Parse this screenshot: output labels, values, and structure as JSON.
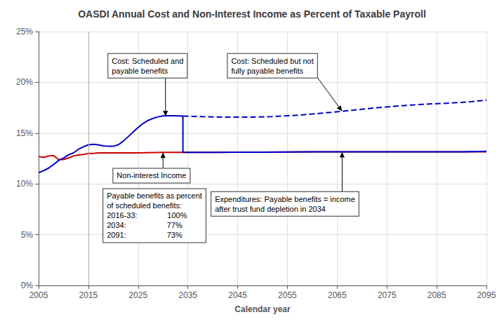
{
  "chart_data": {
    "type": "line",
    "title": "OASDI Annual Cost and Non-Interest Income as Percent of Taxable Payroll",
    "xlabel": "Calendar year",
    "xlim": [
      2005,
      2095
    ],
    "xticks": [
      2005,
      2015,
      2025,
      2035,
      2045,
      2055,
      2065,
      2075,
      2085,
      2095
    ],
    "ylim": [
      0,
      25
    ],
    "yticks": [
      {
        "value": 0,
        "label": "0%"
      },
      {
        "value": 5,
        "label": "5%"
      },
      {
        "value": 10,
        "label": "10%"
      },
      {
        "value": 15,
        "label": "15%"
      },
      {
        "value": 20,
        "label": "20%"
      },
      {
        "value": 25,
        "label": "25%"
      }
    ],
    "grid": true,
    "series": [
      {
        "color": "#CC0000",
        "x": [
          2005,
          2006,
          2007,
          2008,
          2009,
          2010,
          2011,
          2012,
          2013,
          2014,
          2015,
          2016,
          2017,
          2018,
          2019,
          2020,
          2025,
          2030,
          2034,
          2035,
          2040,
          2045,
          2050,
          2055,
          2060,
          2065,
          2070,
          2075,
          2080,
          2085,
          2090,
          2095
        ],
        "values": [
          12.7,
          12.6,
          12.75,
          12.8,
          12.4,
          12.4,
          12.55,
          12.75,
          12.85,
          12.9,
          13.0,
          13.0,
          13.05,
          13.05,
          13.05,
          13.05,
          13.05,
          13.1,
          13.1,
          13.1,
          13.1,
          13.12,
          13.13,
          13.14,
          13.15,
          13.15,
          13.15,
          13.15,
          13.15,
          13.15,
          13.15,
          13.15
        ]
      },
      {
        "color": "#0000CC",
        "x": [
          2005,
          2006,
          2007,
          2008,
          2009,
          2010,
          2011,
          2012,
          2013,
          2014,
          2015,
          2016,
          2017,
          2018,
          2019,
          2020,
          2021,
          2022,
          2023,
          2024,
          2025,
          2026,
          2027,
          2028,
          2029,
          2030,
          2031,
          2032,
          2033,
          2034
        ],
        "values": [
          11.1,
          11.3,
          11.55,
          11.9,
          12.3,
          12.55,
          12.85,
          13.05,
          13.4,
          13.65,
          13.85,
          13.9,
          13.85,
          13.75,
          13.7,
          13.7,
          13.85,
          14.2,
          14.65,
          15.1,
          15.55,
          15.95,
          16.25,
          16.45,
          16.6,
          16.7,
          16.72,
          16.72,
          16.7,
          16.68
        ]
      },
      {
        "color": "#0000CC",
        "x": [
          2034,
          2034
        ],
        "values": [
          16.68,
          13.1
        ]
      },
      {
        "color": "#0000CC",
        "x": [
          2034,
          2035,
          2040,
          2045,
          2050,
          2055,
          2060,
          2065,
          2070,
          2075,
          2080,
          2085,
          2090,
          2095
        ],
        "values": [
          13.1,
          13.1,
          13.1,
          13.12,
          13.13,
          13.14,
          13.15,
          13.15,
          13.15,
          13.15,
          13.15,
          13.15,
          13.15,
          13.2
        ]
      },
      {
        "color": "#0000CC",
        "line_style": "dashed",
        "x": [
          2034,
          2036,
          2038,
          2040,
          2042,
          2044,
          2046,
          2048,
          2050,
          2052,
          2054,
          2056,
          2058,
          2060,
          2062,
          2064,
          2066,
          2068,
          2070,
          2072,
          2074,
          2076,
          2078,
          2080,
          2082,
          2084,
          2086,
          2088,
          2090,
          2092,
          2094,
          2095
        ],
        "values": [
          16.68,
          16.65,
          16.62,
          16.6,
          16.58,
          16.57,
          16.57,
          16.58,
          16.6,
          16.63,
          16.68,
          16.73,
          16.8,
          16.88,
          16.97,
          17.05,
          17.15,
          17.25,
          17.35,
          17.45,
          17.54,
          17.62,
          17.7,
          17.77,
          17.83,
          17.88,
          17.92,
          17.97,
          18.02,
          18.1,
          18.2,
          18.25
        ]
      }
    ],
    "vertical_lines": [
      {
        "x": 2015,
        "color": "#AAAAAA"
      }
    ],
    "annotations": [
      {
        "text": "Cost: Scheduled and\npayable benefits",
        "x": 2030.5,
        "y": 16.65,
        "text_x": 2019,
        "text_y": 22.8
      },
      {
        "text": "Cost: Scheduled but not\nfully payable benefits",
        "x": 2066,
        "y": 17.15,
        "text_x": 2043,
        "text_y": 22.8
      },
      {
        "text": "Non-interest Income",
        "x": 2030,
        "y": 13.1,
        "text_x": 2020,
        "text_y": 11.5
      },
      {
        "text": "Payable benefits as percent\nof scheduled benefits:\n2016-33:              100%\n2034:                   77%\n2091:                   73%",
        "text_x": 2018,
        "text_y": 9.5
      },
      {
        "text": "Expenditures: Payable benefits = income\nafter trust fund depletion in 2034",
        "x": 2066,
        "y": 13.15,
        "text_x": 2037,
        "text_y": 9.2
      }
    ]
  }
}
